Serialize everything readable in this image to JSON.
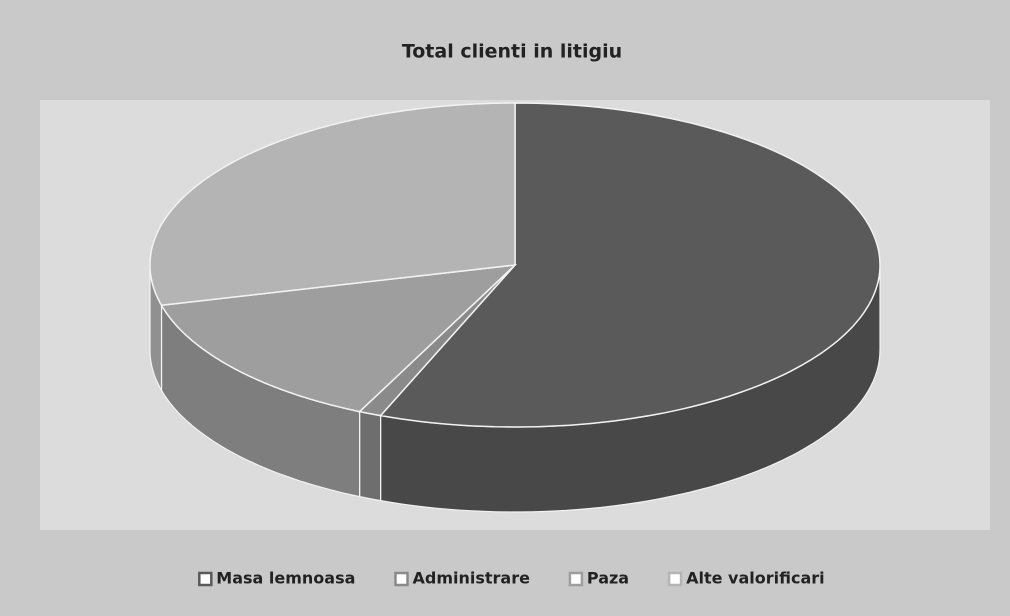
{
  "chart_data": {
    "type": "pie3d",
    "title": "Total clienti in litigiu",
    "categories": [
      "Masa lemnoasa",
      "Administrare",
      "Paza",
      "Alte valorificari"
    ],
    "values": [
      56,
      1,
      14,
      29
    ],
    "colors": [
      "#5a5a5a",
      "#8a8a8a",
      "#9e9e9e",
      "#b4b4b4"
    ],
    "legend": "bottom"
  }
}
